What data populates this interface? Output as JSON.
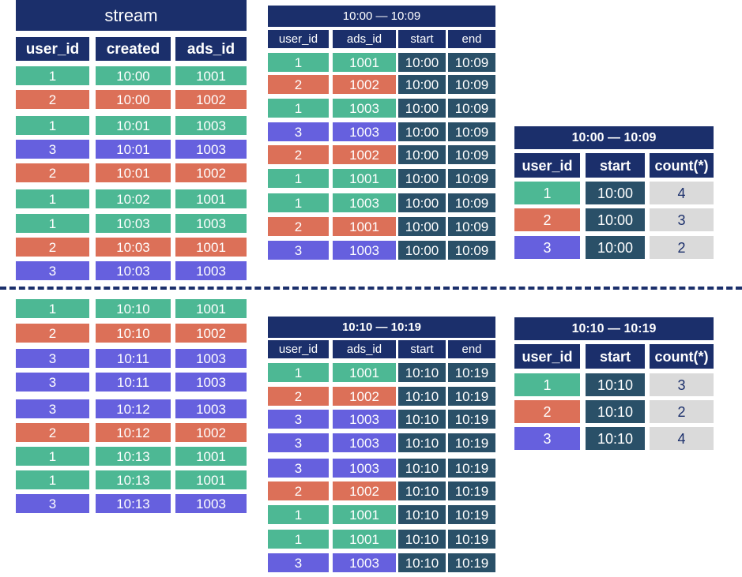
{
  "colors": {
    "header": "#1b2f6b",
    "user_1": "#4db894",
    "user_2": "#dc7058",
    "user_3": "#6660de",
    "window_cell": "#2a5068",
    "count_cell": "#dadada"
  },
  "stream": {
    "title": "stream",
    "columns": [
      "user_id",
      "created",
      "ads_id"
    ],
    "rows_top": [
      [
        "1",
        "10:00",
        "1001"
      ],
      [
        "2",
        "10:00",
        "1002"
      ],
      [
        "1",
        "10:01",
        "1003"
      ],
      [
        "3",
        "10:01",
        "1003"
      ],
      [
        "2",
        "10:01",
        "1002"
      ],
      [
        "1",
        "10:02",
        "1001"
      ],
      [
        "1",
        "10:03",
        "1003"
      ],
      [
        "2",
        "10:03",
        "1001"
      ],
      [
        "3",
        "10:03",
        "1003"
      ]
    ],
    "rows_bottom": [
      [
        "1",
        "10:10",
        "1001"
      ],
      [
        "2",
        "10:10",
        "1002"
      ],
      [
        "3",
        "10:11",
        "1003"
      ],
      [
        "3",
        "10:11",
        "1003"
      ],
      [
        "3",
        "10:12",
        "1003"
      ],
      [
        "2",
        "10:12",
        "1002"
      ],
      [
        "1",
        "10:13",
        "1001"
      ],
      [
        "1",
        "10:13",
        "1001"
      ],
      [
        "3",
        "10:13",
        "1003"
      ]
    ]
  },
  "window1": {
    "title": "10:00 — 10:09",
    "columns": [
      "user_id",
      "ads_id",
      "start",
      "end"
    ],
    "rows": [
      [
        "1",
        "1001",
        "10:00",
        "10:09"
      ],
      [
        "2",
        "1002",
        "10:00",
        "10:09"
      ],
      [
        "1",
        "1003",
        "10:00",
        "10:09"
      ],
      [
        "3",
        "1003",
        "10:00",
        "10:09"
      ],
      [
        "2",
        "1002",
        "10:00",
        "10:09"
      ],
      [
        "1",
        "1001",
        "10:00",
        "10:09"
      ],
      [
        "1",
        "1003",
        "10:00",
        "10:09"
      ],
      [
        "2",
        "1001",
        "10:00",
        "10:09"
      ],
      [
        "3",
        "1003",
        "10:00",
        "10:09"
      ]
    ]
  },
  "window2": {
    "title": "10:10 — 10:19",
    "columns": [
      "user_id",
      "ads_id",
      "start",
      "end"
    ],
    "rows": [
      [
        "1",
        "1001",
        "10:10",
        "10:19"
      ],
      [
        "2",
        "1002",
        "10:10",
        "10:19"
      ],
      [
        "3",
        "1003",
        "10:10",
        "10:19"
      ],
      [
        "3",
        "1003",
        "10:10",
        "10:19"
      ],
      [
        "3",
        "1003",
        "10:10",
        "10:19"
      ],
      [
        "2",
        "1002",
        "10:10",
        "10:19"
      ],
      [
        "1",
        "1001",
        "10:10",
        "10:19"
      ],
      [
        "1",
        "1001",
        "10:10",
        "10:19"
      ],
      [
        "3",
        "1003",
        "10:10",
        "10:19"
      ]
    ]
  },
  "agg1": {
    "title": "10:00 — 10:09",
    "columns": [
      "user_id",
      "start",
      "count(*)"
    ],
    "rows": [
      [
        "1",
        "10:00",
        "4"
      ],
      [
        "2",
        "10:00",
        "3"
      ],
      [
        "3",
        "10:00",
        "2"
      ]
    ]
  },
  "agg2": {
    "title": "10:10 — 10:19",
    "columns": [
      "user_id",
      "start",
      "count(*)"
    ],
    "rows": [
      [
        "1",
        "10:10",
        "3"
      ],
      [
        "2",
        "10:10",
        "2"
      ],
      [
        "3",
        "10:10",
        "4"
      ]
    ]
  }
}
